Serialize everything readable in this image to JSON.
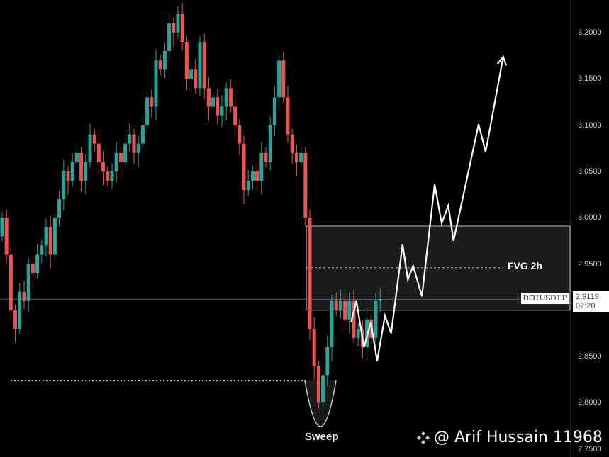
{
  "chart_data": {
    "type": "candlestick",
    "symbol": "DOTUSDT.P",
    "ylim": [
      2.75,
      3.2355
    ],
    "yticks": [
      "3.2000",
      "3.1500",
      "3.1000",
      "3.0500",
      "3.0000",
      "2.9500",
      "2.8500",
      "2.8000",
      "2.7500"
    ],
    "first_open": 2.98,
    "closes": [
      3.0,
      2.96,
      2.9,
      2.88,
      2.92,
      2.91,
      2.95,
      2.94,
      2.96,
      2.97,
      2.99,
      2.96,
      3.0,
      3.02,
      3.05,
      3.04,
      3.06,
      3.07,
      3.04,
      3.06,
      3.09,
      3.08,
      3.06,
      3.05,
      3.04,
      3.05,
      3.07,
      3.06,
      3.08,
      3.09,
      3.07,
      3.08,
      3.1,
      3.13,
      3.12,
      3.17,
      3.16,
      3.18,
      3.21,
      3.2,
      3.22,
      3.19,
      3.15,
      3.16,
      3.14,
      3.19,
      3.14,
      3.12,
      3.13,
      3.11,
      3.12,
      3.14,
      3.12,
      3.1,
      3.08,
      3.03,
      3.04,
      3.05,
      3.04,
      3.07,
      3.06,
      3.1,
      3.13,
      3.17,
      3.13,
      3.09,
      3.07,
      3.06,
      3.07,
      3.0,
      2.88,
      2.84,
      2.8,
      2.83,
      2.86,
      2.91,
      2.9,
      2.91,
      2.89,
      2.91,
      2.87,
      2.88,
      2.86,
      2.89,
      2.87,
      2.91,
      2.912
    ],
    "colors": {
      "up": "#26a69a",
      "down": "#ef5350",
      "projection": "#ffffff"
    },
    "current_price": "2.9119",
    "countdown": "02:20",
    "fvg": {
      "label": "FVG 2h",
      "top": 2.991,
      "bottom": 2.9,
      "mid": 2.946
    },
    "sweep": {
      "label": "Sweep",
      "level": 2.824
    },
    "projection": [
      [
        79.4,
        2.887
      ],
      [
        80.6,
        2.91
      ],
      [
        82.3,
        2.86
      ],
      [
        83.9,
        2.887
      ],
      [
        85.3,
        2.845
      ],
      [
        87.1,
        2.894
      ],
      [
        88.5,
        2.875
      ],
      [
        91.1,
        2.971
      ],
      [
        92.3,
        2.933
      ],
      [
        93.5,
        2.948
      ],
      [
        95.5,
        2.915
      ],
      [
        98.4,
        3.036
      ],
      [
        100,
        2.994
      ],
      [
        101.5,
        3.013
      ],
      [
        102.7,
        2.975
      ],
      [
        108.4,
        3.101
      ],
      [
        110,
        3.071
      ],
      [
        114,
        3.174
      ]
    ]
  },
  "watermark": "@ Arif Hussain 11968"
}
